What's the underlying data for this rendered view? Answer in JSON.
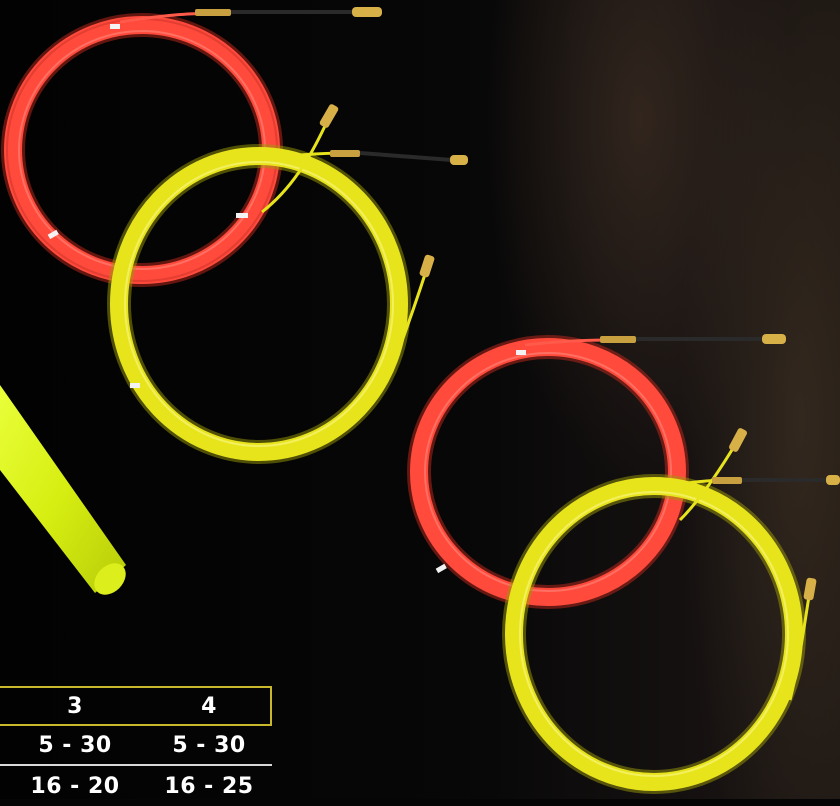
{
  "image": {
    "subject": "Red and yellow coiled fish tape wire pullers on a dark background",
    "colors": {
      "background": "#050505",
      "red_coil": "#ff4c3e",
      "yellow_coil": "#e6e21a",
      "neon_tube": "#e3f41c",
      "table_border": "#c9b82c"
    }
  },
  "spec_table": {
    "header": [
      "3",
      "4"
    ],
    "rows": [
      [
        "5 - 30",
        "5 - 30"
      ],
      [
        "16 - 20",
        "16 - 25"
      ]
    ]
  }
}
